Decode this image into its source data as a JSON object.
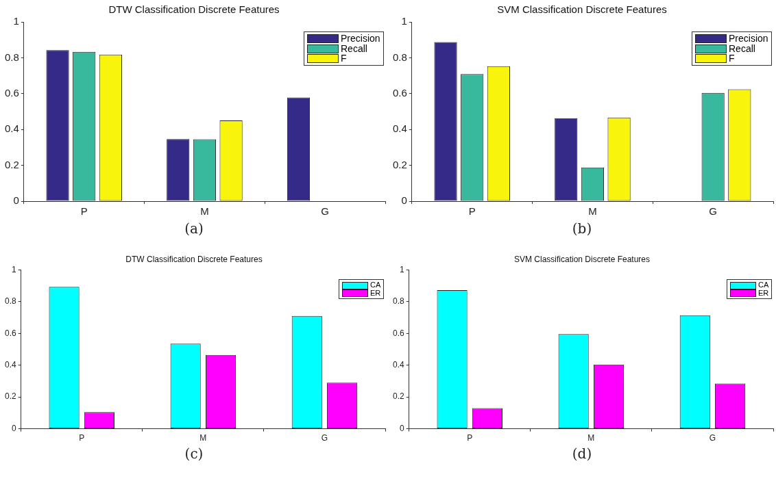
{
  "chart_data": [
    {
      "type": "bar",
      "title": "DTW Classification Discrete Features",
      "categories": [
        "P",
        "M",
        "G"
      ],
      "series": [
        {
          "name": "Precision",
          "color": "#352a87",
          "values": [
            0.843,
            0.346,
            0.578
          ]
        },
        {
          "name": "Recall",
          "color": "#38b89c",
          "values": [
            0.833,
            0.345,
            null
          ]
        },
        {
          "name": "F",
          "color": "#f8f40c",
          "values": [
            0.818,
            0.45,
            null
          ]
        }
      ],
      "ylim": [
        0,
        1
      ],
      "yticks": [
        0,
        0.2,
        0.4,
        0.6,
        0.8,
        1
      ],
      "legend": "top right",
      "annotations": [
        "(a)"
      ]
    },
    {
      "type": "bar",
      "title": "SVM Classification Discrete Features",
      "categories": [
        "P",
        "M",
        "G"
      ],
      "series": [
        {
          "name": "Precision",
          "color": "#352a87",
          "values": [
            0.887,
            0.463,
            null
          ]
        },
        {
          "name": "Recall",
          "color": "#38b89c",
          "values": [
            0.709,
            0.188,
            0.604
          ]
        },
        {
          "name": "F",
          "color": "#f8f40c",
          "values": [
            0.753,
            0.467,
            0.624
          ]
        }
      ],
      "ylim": [
        0,
        1
      ],
      "yticks": [
        0,
        0.2,
        0.4,
        0.6,
        0.8,
        1
      ],
      "legend": "top right",
      "annotations": [
        "(b)"
      ]
    },
    {
      "type": "bar",
      "title": "DTW Classification Discrete Features",
      "categories": [
        "P",
        "M",
        "G"
      ],
      "series": [
        {
          "name": "CA",
          "color": "#00ffff",
          "values": [
            0.893,
            0.535,
            0.71
          ]
        },
        {
          "name": "ER",
          "color": "#ff00ff",
          "values": [
            0.105,
            0.465,
            0.29
          ]
        }
      ],
      "ylim": [
        0,
        1
      ],
      "yticks": [
        0,
        0.2,
        0.4,
        0.6,
        0.8,
        1
      ],
      "legend": "top right",
      "annotations": [
        "(c)"
      ]
    },
    {
      "type": "bar",
      "title": "SVM Classification Discrete Features",
      "categories": [
        "P",
        "M",
        "G"
      ],
      "series": [
        {
          "name": "CA",
          "color": "#00ffff",
          "values": [
            0.872,
            0.596,
            0.714
          ]
        },
        {
          "name": "ER",
          "color": "#ff00ff",
          "values": [
            0.13,
            0.404,
            0.285
          ]
        }
      ],
      "ylim": [
        0,
        1
      ],
      "yticks": [
        0,
        0.2,
        0.4,
        0.6,
        0.8,
        1
      ],
      "legend": "top right",
      "annotations": [
        "(d)"
      ]
    }
  ]
}
